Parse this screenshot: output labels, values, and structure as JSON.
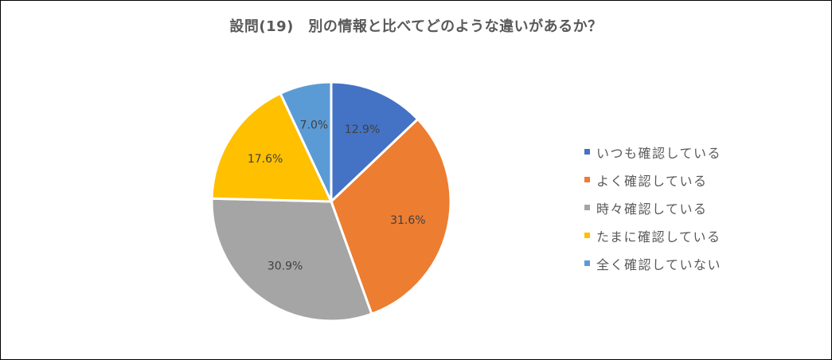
{
  "chart_data": {
    "type": "pie",
    "title": "設問(19)　別の情報と比べてどのような違いがあるか？",
    "categories": [
      "いつも確認している",
      "よく確認している",
      "時々確認している",
      "たまに確認している",
      "全く確認していない"
    ],
    "values": [
      12.9,
      31.6,
      30.9,
      17.6,
      7.0
    ],
    "data_labels": [
      "12.9%",
      "31.6%",
      "30.9%",
      "17.6%",
      "7.0%"
    ],
    "colors": [
      "#4472c4",
      "#ed7d31",
      "#a5a5a5",
      "#ffc000",
      "#5b9bd5"
    ],
    "legend_position": "right"
  }
}
